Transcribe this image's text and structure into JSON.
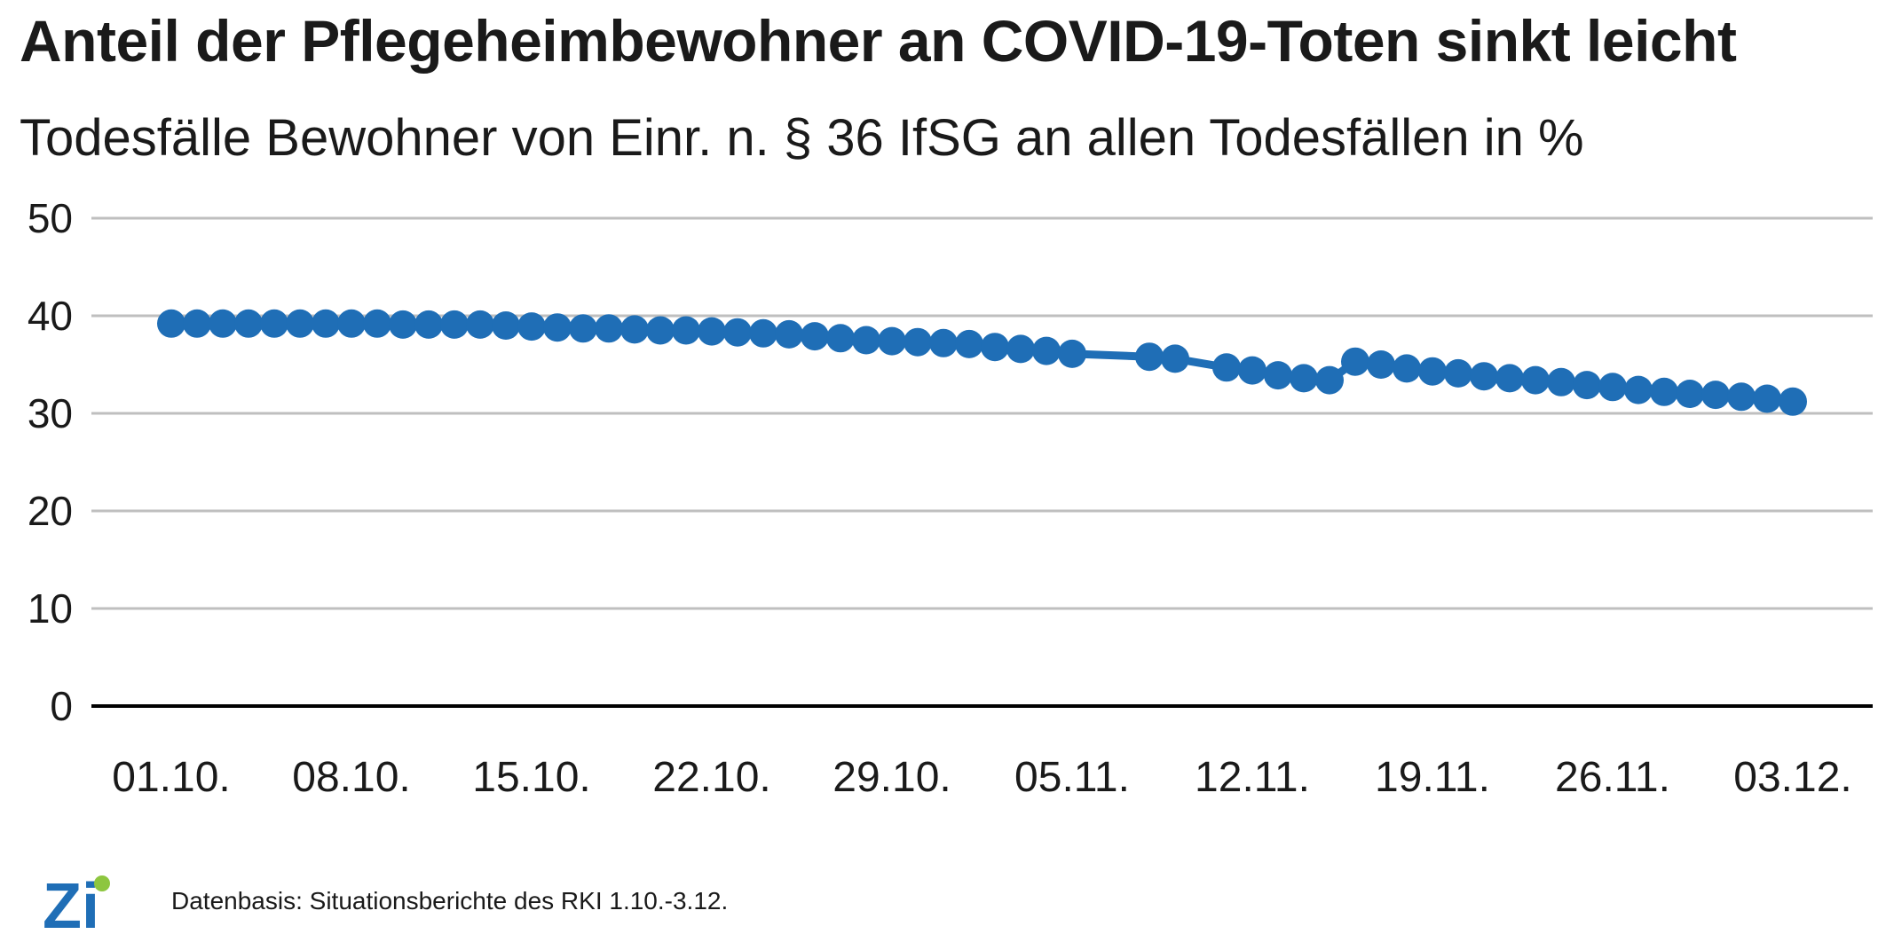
{
  "title": "Anteil der Pflegeheimbewohner an COVID-19-Toten sinkt leicht",
  "subtitle": "Todesfälle Bewohner von Einr. n. § 36 IfSG an allen Todesfällen in %",
  "source": "Datenbasis: Situationsberichte des RKI 1.10.-3.12.",
  "logo_text": "Zi",
  "colors": {
    "series": "#1F6EB6",
    "grid": "#BFBFBF",
    "axis": "#000000",
    "logo_blue": "#1F6EB6",
    "logo_green": "#8DC63F"
  },
  "chart_data": {
    "type": "line",
    "title": "Anteil der Pflegeheimbewohner an COVID-19-Toten sinkt leicht",
    "subtitle": "Todesfälle Bewohner von Einr. n. § 36 IfSG an allen Todesfällen in %",
    "xlabel": "",
    "ylabel": "",
    "ylim": [
      0,
      50
    ],
    "yticks": [
      0,
      10,
      20,
      30,
      40,
      50
    ],
    "grid": true,
    "legend": "none",
    "x_ticks": [
      {
        "label": "01.10.",
        "day": 1
      },
      {
        "label": "08.10.",
        "day": 8
      },
      {
        "label": "15.10.",
        "day": 15
      },
      {
        "label": "22.10.",
        "day": 22
      },
      {
        "label": "29.10.",
        "day": 29
      },
      {
        "label": "05.11.",
        "day": 36
      },
      {
        "label": "12.11.",
        "day": 43
      },
      {
        "label": "19.11.",
        "day": 50
      },
      {
        "label": "26.11.",
        "day": 57
      },
      {
        "label": "03.12.",
        "day": 64
      }
    ],
    "series": [
      {
        "points": [
          {
            "day": 1,
            "value": 39.2
          },
          {
            "day": 2,
            "value": 39.2
          },
          {
            "day": 3,
            "value": 39.2
          },
          {
            "day": 4,
            "value": 39.2
          },
          {
            "day": 5,
            "value": 39.2
          },
          {
            "day": 6,
            "value": 39.2
          },
          {
            "day": 7,
            "value": 39.2
          },
          {
            "day": 8,
            "value": 39.2
          },
          {
            "day": 9,
            "value": 39.2
          },
          {
            "day": 10,
            "value": 39.1
          },
          {
            "day": 11,
            "value": 39.1
          },
          {
            "day": 12,
            "value": 39.1
          },
          {
            "day": 13,
            "value": 39.1
          },
          {
            "day": 14,
            "value": 39.0
          },
          {
            "day": 15,
            "value": 38.9
          },
          {
            "day": 16,
            "value": 38.8
          },
          {
            "day": 17,
            "value": 38.7
          },
          {
            "day": 18,
            "value": 38.7
          },
          {
            "day": 19,
            "value": 38.6
          },
          {
            "day": 20,
            "value": 38.5
          },
          {
            "day": 21,
            "value": 38.5
          },
          {
            "day": 22,
            "value": 38.4
          },
          {
            "day": 23,
            "value": 38.3
          },
          {
            "day": 24,
            "value": 38.2
          },
          {
            "day": 25,
            "value": 38.1
          },
          {
            "day": 26,
            "value": 37.9
          },
          {
            "day": 27,
            "value": 37.7
          },
          {
            "day": 28,
            "value": 37.5
          },
          {
            "day": 29,
            "value": 37.4
          },
          {
            "day": 30,
            "value": 37.3
          },
          {
            "day": 31,
            "value": 37.2
          },
          {
            "day": 32,
            "value": 37.1
          },
          {
            "day": 33,
            "value": 36.8
          },
          {
            "day": 34,
            "value": 36.6
          },
          {
            "day": 35,
            "value": 36.4
          },
          {
            "day": 36,
            "value": 36.1
          },
          {
            "day": 39,
            "value": 35.8
          },
          {
            "day": 40,
            "value": 35.6
          },
          {
            "day": 42,
            "value": 34.7
          },
          {
            "day": 43,
            "value": 34.4
          },
          {
            "day": 44,
            "value": 33.9
          },
          {
            "day": 45,
            "value": 33.6
          },
          {
            "day": 46,
            "value": 33.4
          },
          {
            "day": 47,
            "value": 35.3
          },
          {
            "day": 48,
            "value": 35.0
          },
          {
            "day": 49,
            "value": 34.6
          },
          {
            "day": 50,
            "value": 34.3
          },
          {
            "day": 51,
            "value": 34.1
          },
          {
            "day": 52,
            "value": 33.8
          },
          {
            "day": 53,
            "value": 33.6
          },
          {
            "day": 54,
            "value": 33.4
          },
          {
            "day": 55,
            "value": 33.2
          },
          {
            "day": 56,
            "value": 32.9
          },
          {
            "day": 57,
            "value": 32.7
          },
          {
            "day": 58,
            "value": 32.4
          },
          {
            "day": 59,
            "value": 32.2
          },
          {
            "day": 60,
            "value": 32.0
          },
          {
            "day": 61,
            "value": 31.9
          },
          {
            "day": 62,
            "value": 31.7
          },
          {
            "day": 63,
            "value": 31.5
          },
          {
            "day": 64,
            "value": 31.2
          }
        ]
      }
    ]
  }
}
